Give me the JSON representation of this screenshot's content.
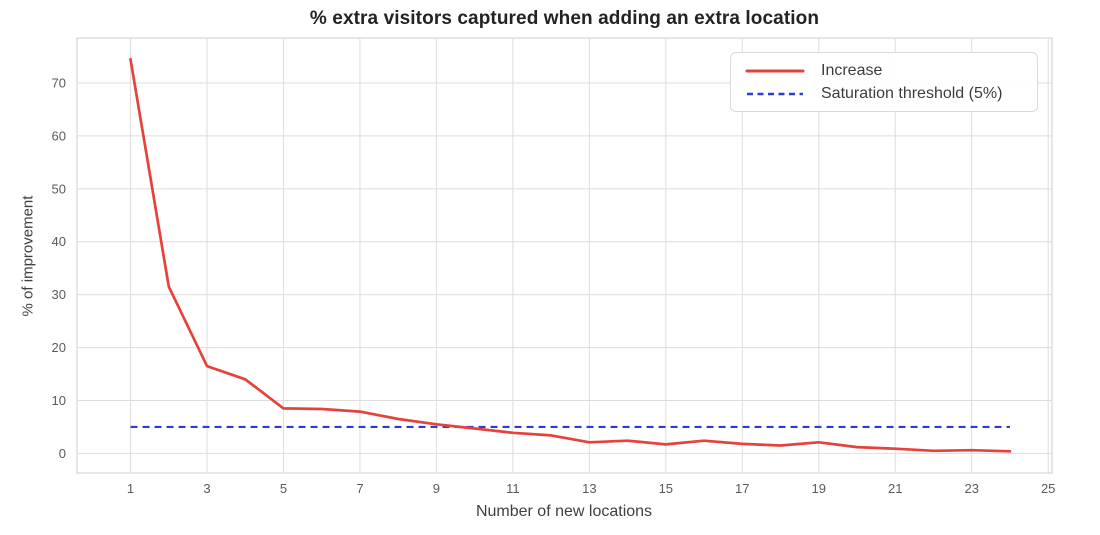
{
  "chart_data": {
    "type": "line",
    "title": "% extra visitors captured when adding an extra location",
    "xlabel": "Number of new locations",
    "ylabel": "% of improvement",
    "x": [
      1,
      2,
      3,
      4,
      5,
      6,
      7,
      8,
      9,
      10,
      11,
      12,
      13,
      14,
      15,
      16,
      17,
      18,
      19,
      20,
      21,
      22,
      23,
      24
    ],
    "series": [
      {
        "name": "Increase",
        "style": "solid",
        "color": "#e5423d",
        "values": [
          74.5,
          31.5,
          16.5,
          14.0,
          8.5,
          8.4,
          7.9,
          6.5,
          5.5,
          4.7,
          3.9,
          3.4,
          2.1,
          2.4,
          1.7,
          2.4,
          1.8,
          1.5,
          2.1,
          1.2,
          0.9,
          0.5,
          0.6,
          0.4
        ]
      },
      {
        "name": "Saturation threshold (5%)",
        "style": "dashed",
        "color": "#2e3bdb",
        "constant": 5,
        "x_start": 1,
        "x_end": 24
      }
    ],
    "x_ticks": [
      1,
      3,
      5,
      7,
      9,
      11,
      13,
      15,
      17,
      19,
      21,
      23,
      25
    ],
    "y_ticks": [
      0,
      10,
      20,
      30,
      40,
      50,
      60,
      70
    ],
    "xlim": [
      -0.4,
      25.1
    ],
    "ylim": [
      -3.7,
      78.5
    ],
    "grid": true,
    "legend_position": "upper right",
    "colors": {
      "grid": "#dedede",
      "spine": "#d6d6d6",
      "tick_label": "#5a5a5a",
      "axis_label": "#3d3f42",
      "title": "#222326",
      "background": "#ffffff"
    }
  }
}
